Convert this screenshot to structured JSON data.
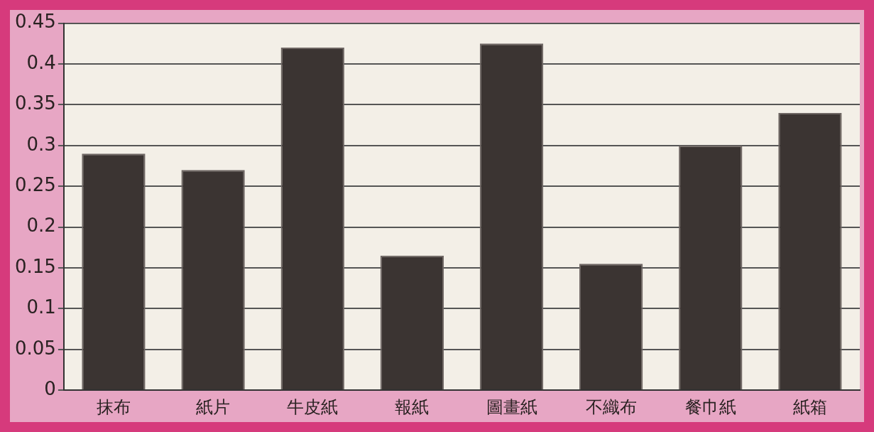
{
  "chart_data": {
    "type": "bar",
    "categories": [
      "抹布",
      "紙片",
      "牛皮紙",
      "報紙",
      "圖畫紙",
      "不織布",
      "餐巾紙",
      "紙箱"
    ],
    "values": [
      0.29,
      0.27,
      0.42,
      0.165,
      0.425,
      0.155,
      0.3,
      0.34
    ],
    "color": "#3b3432",
    "ylim": [
      0,
      0.45
    ],
    "yticks": [
      0,
      0.05,
      0.1,
      0.15,
      0.2,
      0.25,
      0.3,
      0.35,
      0.4,
      0.45
    ],
    "grid": true
  }
}
